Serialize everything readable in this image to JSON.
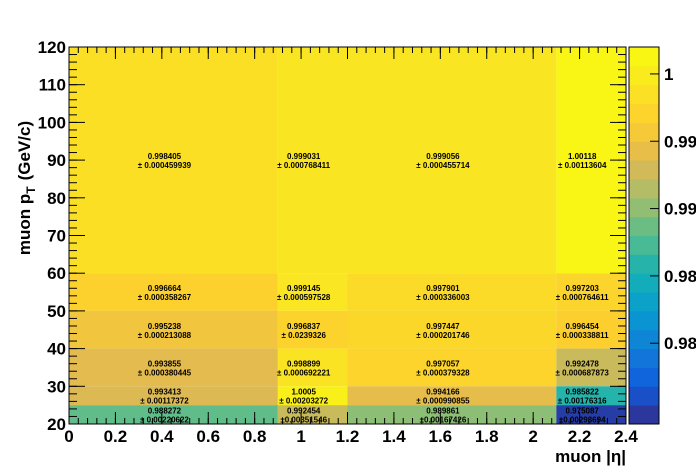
{
  "chart_data": {
    "type": "heatmap",
    "title": "",
    "xlabel": "muon |η|",
    "ylabel_main": "muon p",
    "ylabel_sub": "T",
    "ylabel_unit": "(GeV/c)",
    "xlim": [
      0,
      2.4
    ],
    "ylim": [
      20,
      120
    ],
    "x_edges": [
      0,
      0.9,
      1.2,
      2.1,
      2.4
    ],
    "y_edges": [
      20,
      25,
      30,
      40,
      50,
      60,
      120
    ],
    "x_ticks": [
      "0",
      "0.2",
      "0.4",
      "0.6",
      "0.8",
      "1",
      "1.2",
      "1.4",
      "1.6",
      "1.8",
      "2",
      "2.2",
      "2.4"
    ],
    "y_ticks": [
      "20",
      "30",
      "40",
      "50",
      "60",
      "70",
      "80",
      "90",
      "100",
      "110",
      "120"
    ],
    "z_range": [
      0.974,
      1.002
    ],
    "z_ticks": [
      "0.98",
      "0.98",
      "0.99",
      "0.99",
      "1"
    ],
    "cells": [
      {
        "ix": 0,
        "iy": 5,
        "value": 0.998405,
        "label": "0.998405",
        "error": "± 0.000459939"
      },
      {
        "ix": 1,
        "iy": 5,
        "value": 0.999031,
        "label": "0.999031",
        "error": "± 0.000768411"
      },
      {
        "ix": 2,
        "iy": 5,
        "value": 0.999056,
        "label": "0.999056",
        "error": "± 0.000455714"
      },
      {
        "ix": 3,
        "iy": 5,
        "value": 1.00118,
        "label": "1.00118",
        "error": "± 0.00113604"
      },
      {
        "ix": 0,
        "iy": 4,
        "value": 0.996664,
        "label": "0.996664",
        "error": "± 0.000358267"
      },
      {
        "ix": 1,
        "iy": 4,
        "value": 0.999145,
        "label": "0.999145",
        "error": "± 0.000597528"
      },
      {
        "ix": 2,
        "iy": 4,
        "value": 0.997901,
        "label": "0.997901",
        "error": "± 0.000336003"
      },
      {
        "ix": 3,
        "iy": 4,
        "value": 0.997203,
        "label": "0.997203",
        "error": "± 0.000764611"
      },
      {
        "ix": 0,
        "iy": 3,
        "value": 0.995238,
        "label": "0.995238",
        "error": "± 0.000213088"
      },
      {
        "ix": 1,
        "iy": 3,
        "value": 0.996837,
        "label": "0.996837",
        "error": "± 0.0239326"
      },
      {
        "ix": 2,
        "iy": 3,
        "value": 0.997447,
        "label": "0.997447",
        "error": "± 0.000201746"
      },
      {
        "ix": 3,
        "iy": 3,
        "value": 0.996454,
        "label": "0.996454",
        "error": "± 0.000338811"
      },
      {
        "ix": 0,
        "iy": 2,
        "value": 0.993855,
        "label": "0.993855",
        "error": "± 0.000380445"
      },
      {
        "ix": 1,
        "iy": 2,
        "value": 0.998899,
        "label": "0.998899",
        "error": "± 0.000692221"
      },
      {
        "ix": 2,
        "iy": 2,
        "value": 0.997057,
        "label": "0.997057",
        "error": "± 0.000379328"
      },
      {
        "ix": 3,
        "iy": 2,
        "value": 0.992478,
        "label": "0.992478",
        "error": "± 0.000687873"
      },
      {
        "ix": 0,
        "iy": 1,
        "value": 0.993413,
        "label": "0.993413",
        "error": "± 0.00117372"
      },
      {
        "ix": 1,
        "iy": 1,
        "value": 1.0005,
        "label": "1.0005",
        "error": "± 0.00203272"
      },
      {
        "ix": 2,
        "iy": 1,
        "value": 0.994166,
        "label": "0.994166",
        "error": "± 0.000990855"
      },
      {
        "ix": 3,
        "iy": 1,
        "value": 0.985822,
        "label": "0.985822",
        "error": "± 0.00176316"
      },
      {
        "ix": 0,
        "iy": 0,
        "value": 0.988272,
        "label": "0.988272",
        "error": "± 0.00220622"
      },
      {
        "ix": 1,
        "iy": 0,
        "value": 0.992454,
        "label": "0.992454",
        "error": "±0.00351546"
      },
      {
        "ix": 2,
        "iy": 0,
        "value": 0.989861,
        "label": "0.989861",
        "error": "±0.00167426"
      },
      {
        "ix": 3,
        "iy": 0,
        "value": 0.975087,
        "label": "0.975087",
        "error": "±0.00293694"
      }
    ],
    "grid": false,
    "legend": "colorbar-right"
  }
}
